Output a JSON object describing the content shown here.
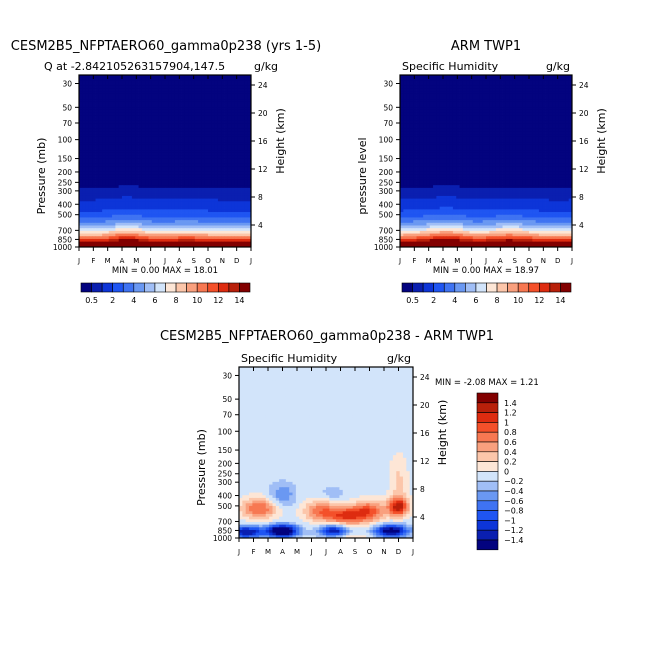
{
  "chart_data": [
    {
      "type": "heatmap",
      "title": "CESM2B5_NFPTAERO60_gamma0p238 (yrs 1-5)",
      "subtitle_left": "Q at -2.842105263157904,147.5",
      "subtitle_right": "g/kg",
      "ylabel": "Pressure (mb)",
      "ylabel_right": "Height (km)",
      "x_ticks": [
        "J",
        "F",
        "M",
        "A",
        "M",
        "J",
        "J",
        "A",
        "S",
        "O",
        "N",
        "D",
        "J"
      ],
      "y_ticks": [
        30,
        50,
        70,
        100,
        150,
        200,
        250,
        300,
        400,
        500,
        700,
        850,
        1000
      ],
      "y_right_ticks": [
        4,
        8,
        12,
        16,
        20,
        24
      ],
      "ylim": [
        1000,
        25
      ],
      "minmax_text": "MIN =    0.00 MAX =   18.01",
      "min": 0.0,
      "max": 18.01,
      "levels": [
        0.5,
        1,
        2,
        3,
        4,
        5,
        6,
        7,
        8,
        9,
        10,
        11,
        12,
        13,
        14
      ],
      "colorbar_labels": [
        "0.5",
        "2",
        "4",
        "6",
        "8",
        "10",
        "12",
        "14"
      ]
    },
    {
      "type": "heatmap",
      "title": "ARM TWP1",
      "subtitle_left": "Specific Humidity",
      "subtitle_right": "g/kg",
      "ylabel": "pressure level",
      "ylabel_right": "Height (km)",
      "x_ticks": [
        "J",
        "F",
        "M",
        "A",
        "M",
        "J",
        "J",
        "A",
        "S",
        "O",
        "N",
        "D",
        "J"
      ],
      "y_ticks": [
        30,
        50,
        70,
        100,
        150,
        200,
        250,
        300,
        400,
        500,
        700,
        850,
        1000
      ],
      "y_right_ticks": [
        4,
        8,
        12,
        16,
        20,
        24
      ],
      "ylim": [
        1000,
        25
      ],
      "minmax_text": "MIN =    0.00 MAX =   18.97",
      "min": 0.0,
      "max": 18.97,
      "levels": [
        0.5,
        1,
        2,
        3,
        4,
        5,
        6,
        7,
        8,
        9,
        10,
        11,
        12,
        13,
        14
      ],
      "colorbar_labels": [
        "0.5",
        "2",
        "4",
        "6",
        "8",
        "10",
        "12",
        "14"
      ]
    },
    {
      "type": "heatmap",
      "title": "CESM2B5_NFPTAERO60_gamma0p238 - ARM TWP1",
      "subtitle_left": "Specific Humidity",
      "subtitle_right": "g/kg",
      "ylabel": "Pressure (mb)",
      "ylabel_right": "Height (km)",
      "x_ticks": [
        "J",
        "F",
        "M",
        "A",
        "M",
        "J",
        "J",
        "A",
        "S",
        "O",
        "N",
        "D",
        "J"
      ],
      "y_ticks": [
        30,
        50,
        70,
        100,
        150,
        200,
        250,
        300,
        400,
        500,
        700,
        850,
        1000
      ],
      "y_right_ticks": [
        4,
        8,
        12,
        16,
        20,
        24
      ],
      "ylim": [
        1000,
        25
      ],
      "minmax_text": "MIN =  -2.08 MAX =    1.21",
      "min": -2.08,
      "max": 1.21,
      "levels": [
        -1.4,
        -1.2,
        -1,
        -0.8,
        -0.6,
        -0.4,
        -0.2,
        0,
        0.2,
        0.4,
        0.6,
        0.8,
        1,
        1.2,
        1.4
      ],
      "colorbar_labels": [
        "1.4",
        "1.2",
        "1",
        "0.8",
        "0.6",
        "0.4",
        "0.2",
        "0",
        "−0.2",
        "−0.4",
        "−0.6",
        "−0.8",
        "−1",
        "−1.2",
        "−1.4"
      ]
    }
  ],
  "colors": [
    "#03037f",
    "#0a1fb0",
    "#0d35d8",
    "#1f55f2",
    "#3f73f2",
    "#6a98f2",
    "#a0bef6",
    "#d2e4fa",
    "#fde6d6",
    "#fcc6aa",
    "#f9a07e",
    "#f77852",
    "#f4502a",
    "#de2c10",
    "#b8200a",
    "#820000"
  ]
}
